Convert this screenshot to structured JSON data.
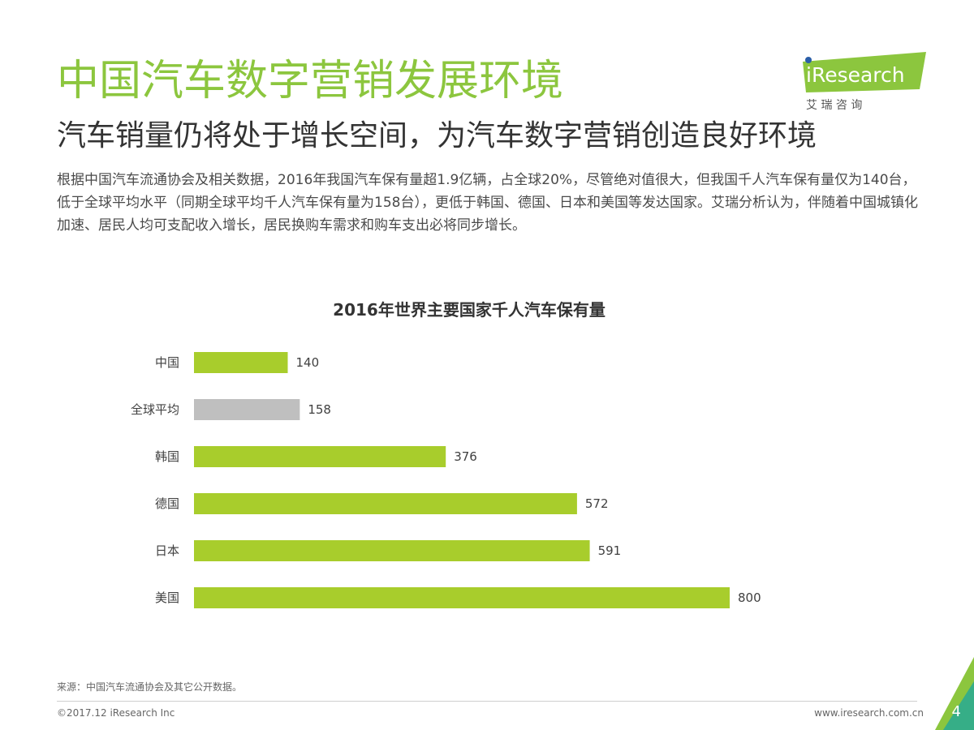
{
  "header": {
    "title": "中国汽车数字营销发展环境",
    "subtitle": "汽车销量仍将处于增长空间，为汽车数字营销创造良好环境",
    "body": "根据中国汽车流通协会及相关数据，2016年我国汽车保有量超1.9亿辆，占全球20%，尽管绝对值很大，但我国千人汽车保有量仅为140台，低于全球平均水平（同期全球平均千人汽车保有量为158台），更低于韩国、德国、日本和美国等发达国家。艾瑞分析认为，伴随着中国城镇化加速、居民人均可支配收入增长，居民换购车需求和购车支出必将同步增长。"
  },
  "logo": {
    "brand": "iResearch",
    "chinese": "艾 瑞 咨 询",
    "color": "#8cc63e"
  },
  "chart_data": {
    "type": "bar",
    "orientation": "horizontal",
    "title": "2016年世界主要国家千人汽车保有量",
    "categories": [
      "中国",
      "全球平均",
      "韩国",
      "德国",
      "日本",
      "美国"
    ],
    "values": [
      140,
      158,
      376,
      572,
      591,
      800
    ],
    "colors": [
      "#a8cd2c",
      "#bfbfbf",
      "#a8cd2c",
      "#a8cd2c",
      "#a8cd2c",
      "#a8cd2c"
    ],
    "xlim": [
      0,
      800
    ],
    "grid": false,
    "legend": "none"
  },
  "footer": {
    "source": "来源：中国汽车流通协会及其它公开数据。",
    "copyright": "©2017.12 iResearch Inc",
    "website": "www.iresearch.com.cn",
    "page": "4"
  }
}
